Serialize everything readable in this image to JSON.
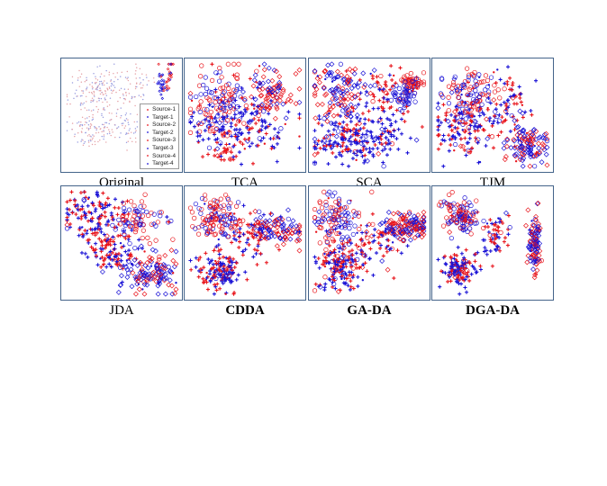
{
  "figure": {
    "colors": {
      "red": "#e8141b",
      "blue": "#1a12d6",
      "light_red": "#e6a3a8",
      "light_blue": "#9a9ee0",
      "frame": "#44648a"
    }
  },
  "legend": {
    "placement": "bottom-right",
    "items": [
      {
        "label": "Source-1",
        "color": "#e8141b",
        "marker": "dot"
      },
      {
        "label": "Target-1",
        "color": "#1a12d6",
        "marker": "dot"
      },
      {
        "label": "Source-2",
        "color": "#e8141b",
        "marker": "dot"
      },
      {
        "label": "Target-2",
        "color": "#1a12d6",
        "marker": "dot"
      },
      {
        "label": "Source-3",
        "color": "#e8141b",
        "marker": "dot"
      },
      {
        "label": "Target-3",
        "color": "#1a12d6",
        "marker": "dot"
      },
      {
        "label": "Source-4",
        "color": "#e8141b",
        "marker": "dot"
      },
      {
        "label": "Target-4",
        "color": "#1a12d6",
        "marker": "dot"
      }
    ]
  },
  "chart_data": [
    {
      "type": "scatter",
      "title": "Original",
      "bold": false,
      "grid": false,
      "xlim": [
        0,
        1
      ],
      "ylim": [
        0,
        1
      ],
      "marker_scale": 0.5,
      "clusters": [
        {
          "cx": 0.28,
          "cy": 0.25,
          "sx": 0.12,
          "sy": 0.1,
          "n": 150,
          "marker": "dot",
          "mix": 0.5
        },
        {
          "cx": 0.62,
          "cy": 0.2,
          "sx": 0.08,
          "sy": 0.08,
          "n": 50,
          "marker": "dot",
          "mix": 0.5
        },
        {
          "cx": 0.25,
          "cy": 0.62,
          "sx": 0.12,
          "sy": 0.1,
          "n": 130,
          "marker": "dot",
          "mix": 0.5
        },
        {
          "cx": 0.55,
          "cy": 0.6,
          "sx": 0.08,
          "sy": 0.12,
          "n": 50,
          "marker": "dot",
          "mix": 0.5
        },
        {
          "cx": 0.92,
          "cy": 0.12,
          "sx": 0.025,
          "sy": 0.08,
          "n": 25,
          "marker": "diamond",
          "mix": 0.8
        },
        {
          "cx": 0.85,
          "cy": 0.22,
          "sx": 0.02,
          "sy": 0.07,
          "n": 25,
          "marker": "diamond",
          "mix": 0.1
        }
      ]
    },
    {
      "type": "scatter",
      "title": "TCA",
      "bold": false,
      "grid": false,
      "xlim": [
        0,
        1
      ],
      "ylim": [
        0,
        1
      ],
      "marker_scale": 1,
      "clusters": [
        {
          "cx": 0.28,
          "cy": 0.4,
          "sx": 0.15,
          "sy": 0.17,
          "n": 130,
          "marker": "circle",
          "mix": 0.5
        },
        {
          "cx": 0.75,
          "cy": 0.28,
          "sx": 0.12,
          "sy": 0.1,
          "n": 90,
          "marker": "diamond",
          "mix": 0.6
        },
        {
          "cx": 0.45,
          "cy": 0.6,
          "sx": 0.22,
          "sy": 0.14,
          "n": 170,
          "marker": "plus",
          "mix": 0.35
        },
        {
          "cx": 0.3,
          "cy": 0.85,
          "sx": 0.1,
          "sy": 0.05,
          "n": 30,
          "marker": "plus",
          "mix": 0.8
        }
      ]
    },
    {
      "type": "scatter",
      "title": "SCA",
      "bold": false,
      "grid": false,
      "xlim": [
        0,
        1
      ],
      "ylim": [
        0,
        1
      ],
      "marker_scale": 1,
      "clusters": [
        {
          "cx": 0.88,
          "cy": 0.2,
          "sx": 0.05,
          "sy": 0.05,
          "n": 60,
          "marker": "circle",
          "mix": 0.9
        },
        {
          "cx": 0.8,
          "cy": 0.33,
          "sx": 0.06,
          "sy": 0.05,
          "n": 50,
          "marker": "circle",
          "mix": 0.1
        },
        {
          "cx": 0.22,
          "cy": 0.28,
          "sx": 0.14,
          "sy": 0.13,
          "n": 130,
          "marker": "diamond",
          "mix": 0.5
        },
        {
          "cx": 0.58,
          "cy": 0.3,
          "sx": 0.12,
          "sy": 0.12,
          "n": 60,
          "marker": "plus",
          "mix": 0.7
        },
        {
          "cx": 0.3,
          "cy": 0.72,
          "sx": 0.16,
          "sy": 0.11,
          "n": 180,
          "marker": "plus",
          "mix": 0.35
        },
        {
          "cx": 0.65,
          "cy": 0.68,
          "sx": 0.12,
          "sy": 0.14,
          "n": 60,
          "marker": "plus",
          "mix": 0.2
        }
      ]
    },
    {
      "type": "scatter",
      "title": "TJM",
      "bold": false,
      "grid": false,
      "xlim": [
        0,
        1
      ],
      "ylim": [
        0,
        1
      ],
      "marker_scale": 1,
      "clusters": [
        {
          "cx": 0.3,
          "cy": 0.3,
          "sx": 0.13,
          "sy": 0.13,
          "n": 130,
          "marker": "circle",
          "mix": 0.5
        },
        {
          "cx": 0.25,
          "cy": 0.62,
          "sx": 0.14,
          "sy": 0.12,
          "n": 140,
          "marker": "plus",
          "mix": 0.45
        },
        {
          "cx": 0.65,
          "cy": 0.37,
          "sx": 0.1,
          "sy": 0.12,
          "n": 60,
          "marker": "plus",
          "mix": 0.6
        },
        {
          "cx": 0.8,
          "cy": 0.78,
          "sx": 0.09,
          "sy": 0.1,
          "n": 120,
          "marker": "diamond",
          "mix": 0.35
        }
      ]
    },
    {
      "type": "scatter",
      "title": "JDA",
      "bold": false,
      "grid": false,
      "xlim": [
        0,
        1
      ],
      "ylim": [
        0,
        1
      ],
      "marker_scale": 1,
      "clusters": [
        {
          "cx": 0.25,
          "cy": 0.25,
          "sx": 0.16,
          "sy": 0.12,
          "n": 140,
          "marker": "plus",
          "mix": 0.5
        },
        {
          "cx": 0.62,
          "cy": 0.28,
          "sx": 0.12,
          "sy": 0.1,
          "n": 80,
          "marker": "circle",
          "mix": 0.55
        },
        {
          "cx": 0.42,
          "cy": 0.6,
          "sx": 0.12,
          "sy": 0.1,
          "n": 110,
          "marker": "plus",
          "mix": 0.5
        },
        {
          "cx": 0.75,
          "cy": 0.78,
          "sx": 0.14,
          "sy": 0.09,
          "n": 130,
          "marker": "diamond",
          "mix": 0.4
        }
      ]
    },
    {
      "type": "scatter",
      "title": "CDDA",
      "bold": true,
      "grid": false,
      "xlim": [
        0,
        1
      ],
      "ylim": [
        0,
        1
      ],
      "marker_scale": 1,
      "clusters": [
        {
          "cx": 0.25,
          "cy": 0.28,
          "sx": 0.1,
          "sy": 0.1,
          "n": 130,
          "marker": "circle",
          "mix": 0.55
        },
        {
          "cx": 0.78,
          "cy": 0.38,
          "sx": 0.12,
          "sy": 0.07,
          "n": 110,
          "marker": "diamond",
          "mix": 0.5
        },
        {
          "cx": 0.55,
          "cy": 0.45,
          "sx": 0.1,
          "sy": 0.12,
          "n": 60,
          "marker": "plus",
          "mix": 0.6
        },
        {
          "cx": 0.28,
          "cy": 0.75,
          "sx": 0.1,
          "sy": 0.1,
          "n": 150,
          "marker": "plus",
          "mix": 0.4
        }
      ]
    },
    {
      "type": "scatter",
      "title": "GA-DA",
      "bold": true,
      "grid": false,
      "xlim": [
        0,
        1
      ],
      "ylim": [
        0,
        1
      ],
      "marker_scale": 1,
      "clusters": [
        {
          "cx": 0.22,
          "cy": 0.3,
          "sx": 0.12,
          "sy": 0.13,
          "n": 130,
          "marker": "circle",
          "mix": 0.5
        },
        {
          "cx": 0.8,
          "cy": 0.35,
          "sx": 0.12,
          "sy": 0.06,
          "n": 150,
          "marker": "diamond",
          "mix": 0.55
        },
        {
          "cx": 0.55,
          "cy": 0.5,
          "sx": 0.12,
          "sy": 0.12,
          "n": 70,
          "marker": "plus",
          "mix": 0.55
        },
        {
          "cx": 0.25,
          "cy": 0.72,
          "sx": 0.11,
          "sy": 0.11,
          "n": 170,
          "marker": "plus",
          "mix": 0.45
        }
      ]
    },
    {
      "type": "scatter",
      "title": "DGA-DA",
      "bold": true,
      "grid": false,
      "xlim": [
        0,
        1
      ],
      "ylim": [
        0,
        1
      ],
      "marker_scale": 1,
      "clusters": [
        {
          "cx": 0.22,
          "cy": 0.25,
          "sx": 0.07,
          "sy": 0.09,
          "n": 120,
          "marker": "circle",
          "mix": 0.5
        },
        {
          "cx": 0.52,
          "cy": 0.45,
          "sx": 0.06,
          "sy": 0.1,
          "n": 60,
          "marker": "plus",
          "mix": 0.5
        },
        {
          "cx": 0.87,
          "cy": 0.55,
          "sx": 0.03,
          "sy": 0.13,
          "n": 110,
          "marker": "diamond",
          "mix": 0.5
        },
        {
          "cx": 0.22,
          "cy": 0.75,
          "sx": 0.08,
          "sy": 0.08,
          "n": 130,
          "marker": "plus",
          "mix": 0.5
        }
      ]
    }
  ]
}
